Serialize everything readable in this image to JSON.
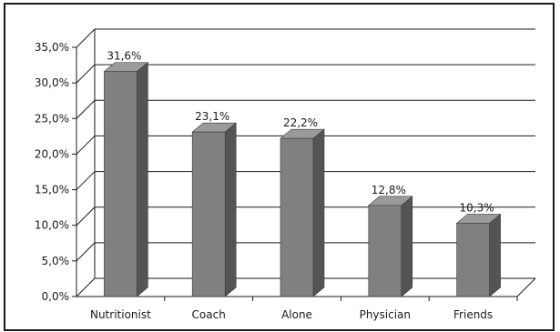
{
  "chart_data": {
    "type": "bar",
    "categories": [
      "Nutritionist",
      "Coach",
      "Alone",
      "Physician",
      "Friends"
    ],
    "values": [
      31.6,
      23.1,
      22.2,
      12.8,
      10.3
    ],
    "data_labels": [
      "31,6%",
      "23,1%",
      "22,2%",
      "12,8%",
      "10,3%"
    ],
    "y_ticks": [
      "0,0%",
      "5,0%",
      "10,0%",
      "15,0%",
      "20,0%",
      "25,0%",
      "30,0%",
      "35,0%"
    ],
    "ylim": [
      0,
      35
    ],
    "y_tick_step": 5,
    "three_d": true,
    "grid": true,
    "legend": "none",
    "title": "",
    "xlabel": "",
    "ylabel": "",
    "colors": {
      "bar_front": "#808080",
      "bar_side": "#545454",
      "bar_top": "#9a9a9a",
      "bar_edge": "#3a3a3a",
      "grid": "#1a1a1a",
      "text": "#1a1a1a"
    }
  }
}
